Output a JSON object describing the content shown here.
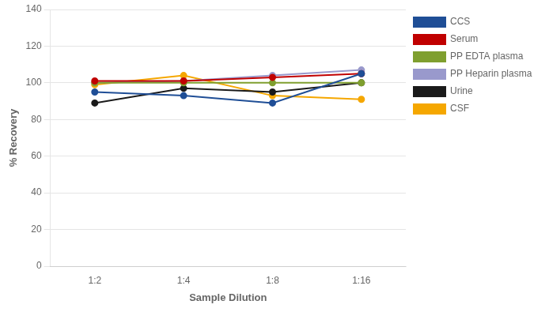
{
  "chart_data": {
    "type": "line",
    "categories": [
      "1:2",
      "1:4",
      "1:8",
      "1:16"
    ],
    "series": [
      {
        "name": "CCS",
        "color": "#1f4e96",
        "values": [
          95,
          93,
          89,
          105
        ]
      },
      {
        "name": "Serum",
        "color": "#c00000",
        "values": [
          101,
          101,
          103,
          105
        ]
      },
      {
        "name": "PP EDTA plasma",
        "color": "#7f9f2f",
        "values": [
          100,
          100,
          100,
          100
        ]
      },
      {
        "name": "PP Heparin plasma",
        "color": "#9999cc",
        "values": [
          100,
          101,
          104,
          107
        ]
      },
      {
        "name": "Urine",
        "color": "#1a1a1a",
        "values": [
          89,
          97,
          95,
          100
        ]
      },
      {
        "name": "CSF",
        "color": "#f5a700",
        "values": [
          99,
          104,
          93,
          91
        ]
      }
    ],
    "xlabel": "Sample Dilution",
    "ylabel": "% Recovery",
    "ylim": [
      0,
      140
    ],
    "yticks": [
      0,
      20,
      40,
      60,
      80,
      100,
      120,
      140
    ],
    "grid": true,
    "legend": "right",
    "marker": "circle"
  }
}
